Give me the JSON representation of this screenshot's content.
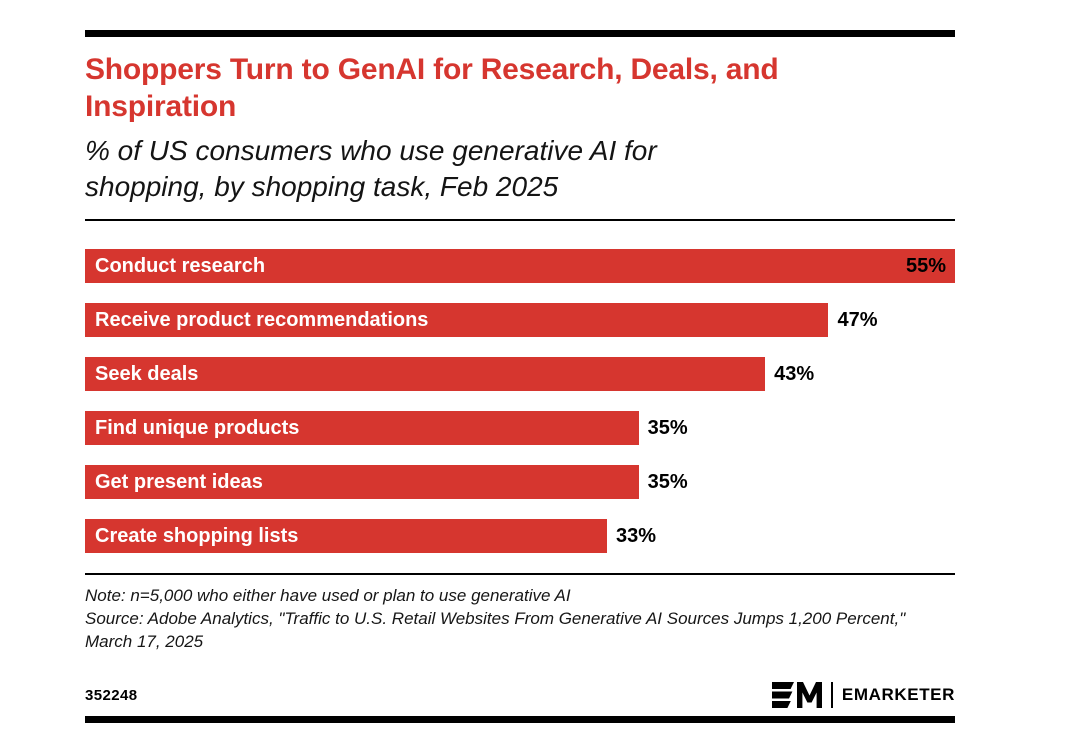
{
  "header": {
    "title": "Shoppers Turn to GenAI for Research, Deals, and Inspiration",
    "title_lines": [
      "Shoppers Turn to GenAI for Research, Deals, and",
      "Inspiration"
    ],
    "subtitle": "% of US consumers who use generative AI for shopping, by shopping task, Feb 2025",
    "subtitle_lines": [
      "% of US consumers who use generative AI for",
      "shopping, by shopping task, Feb 2025"
    ]
  },
  "chart_data": {
    "type": "bar",
    "orientation": "horizontal",
    "title": "Shoppers Turn to GenAI for Research, Deals, and Inspiration",
    "subtitle": "% of US consumers who use generative AI for shopping, by shopping task, Feb 2025",
    "categories": [
      "Conduct research",
      "Receive product recommendations",
      "Seek deals",
      "Find unique products",
      "Get present ideas",
      "Create shopping lists"
    ],
    "values": [
      55,
      47,
      43,
      35,
      35,
      33
    ],
    "value_labels": [
      "55%",
      "47%",
      "43%",
      "35%",
      "35%",
      "33%"
    ],
    "xlabel": "",
    "ylabel": "",
    "xlim": [
      0,
      55
    ],
    "grid": false,
    "legend": false,
    "bar_color": "#d6362f",
    "category_label_position": "inside-left",
    "value_label_position": "outside-right-or-inside-when-full"
  },
  "notes": {
    "note": "Note: n=5,000 who either have used or plan to use generative AI",
    "source": "Source: Adobe Analytics, \"Traffic to U.S. Retail Websites From Generative AI Sources Jumps 1,200 Percent,\" March 17, 2025"
  },
  "footer": {
    "chart_id": "352248",
    "brand": "EMARKETER",
    "logo": "emarketer-em-logo"
  },
  "colors": {
    "accent_red": "#d6362f",
    "text_black": "#141414",
    "bar_label_white": "#ffffff",
    "rule_black": "#000000"
  }
}
